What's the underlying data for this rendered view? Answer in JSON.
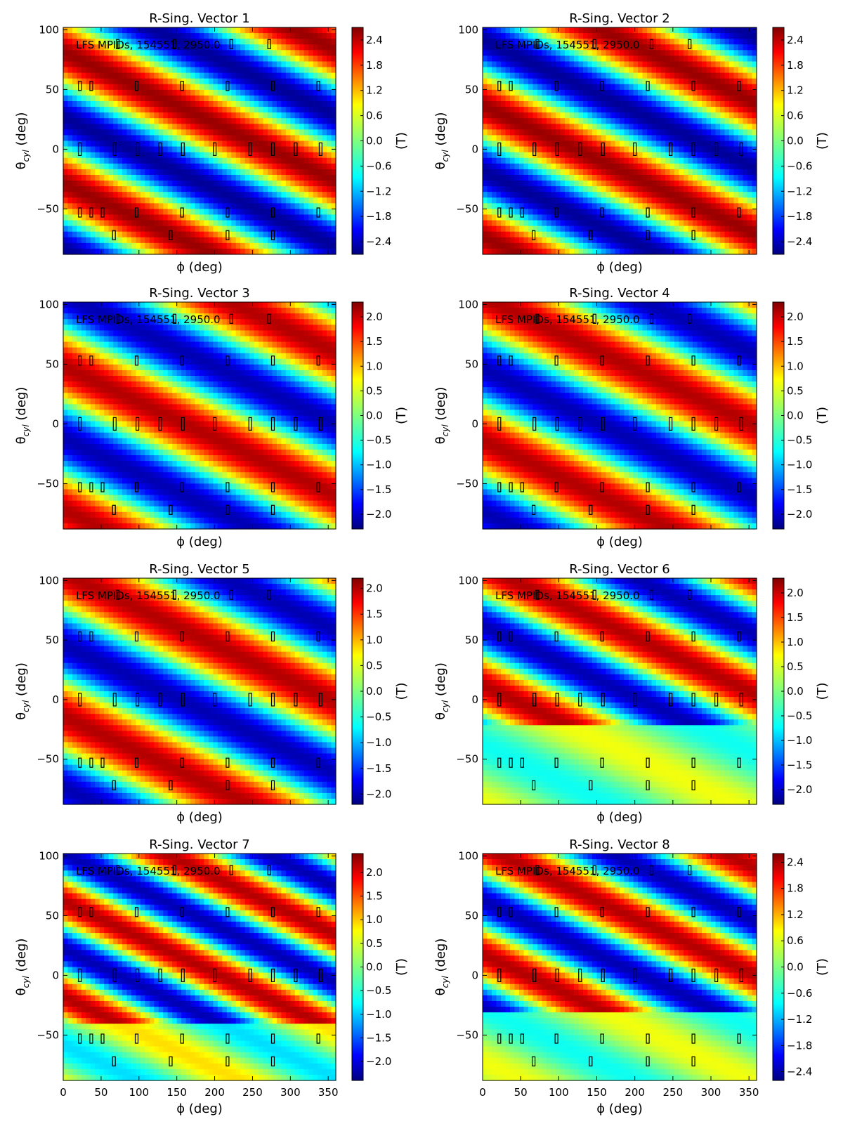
{
  "figure": {
    "annotation": "LFS MPIDs, 154551, 2950.0",
    "xlabel": "ϕ (deg)",
    "ylabel_main": "θ",
    "ylabel_sub": "cyl",
    "ylabel_tail": " (deg)",
    "colorbar_label": "(T)"
  },
  "chart_data": [
    {
      "type": "heatmap",
      "title": "R-Sing. Vector 1",
      "xlim": [
        0,
        360
      ],
      "ylim": [
        -88,
        102
      ],
      "xticks": [
        0,
        50,
        100,
        150,
        200,
        250,
        300,
        350
      ],
      "yticks": [
        -50,
        0,
        50,
        100
      ],
      "xticklabels_visible": false,
      "cbar_ticks": [
        -2.4,
        -1.8,
        -1.2,
        -0.6,
        0.0,
        0.6,
        1.2,
        1.8,
        2.4
      ],
      "cbar_range": [
        -2.7,
        2.7
      ],
      "pattern": {
        "rows": [
          [
            0,
            1.0,
            0.7
          ]
        ],
        "tilt": -0.3
      }
    },
    {
      "type": "heatmap",
      "title": "R-Sing. Vector 2",
      "xlim": [
        0,
        360
      ],
      "ylim": [
        -88,
        102
      ],
      "xticks": [
        0,
        50,
        100,
        150,
        200,
        250,
        300,
        350
      ],
      "yticks": [
        -50,
        0,
        50,
        100
      ],
      "xticklabels_visible": false,
      "cbar_ticks": [
        -2.4,
        -1.8,
        -1.2,
        -0.6,
        0.0,
        0.6,
        1.2,
        1.8,
        2.4
      ],
      "cbar_range": [
        -2.7,
        2.7
      ],
      "pattern": {
        "rows": [
          [
            -50,
            1.0,
            0.7
          ]
        ],
        "tilt": -0.3
      }
    },
    {
      "type": "heatmap",
      "title": "R-Sing. Vector 3",
      "xlim": [
        0,
        360
      ],
      "ylim": [
        -88,
        102
      ],
      "xticks": [
        0,
        50,
        100,
        150,
        200,
        250,
        300,
        350
      ],
      "yticks": [
        -50,
        0,
        50,
        100
      ],
      "xticklabels_visible": false,
      "cbar_ticks": [
        -2.0,
        -1.5,
        -1.0,
        -0.5,
        0.0,
        0.5,
        1.0,
        1.5,
        2.0
      ],
      "cbar_range": [
        -2.3,
        2.3
      ],
      "pattern": {
        "rows": [
          [
            60,
            1.0,
            0.9
          ]
        ],
        "tilt": -0.3
      }
    },
    {
      "type": "heatmap",
      "title": "R-Sing. Vector 4",
      "xlim": [
        0,
        360
      ],
      "ylim": [
        -88,
        102
      ],
      "xticks": [
        0,
        50,
        100,
        150,
        200,
        250,
        300,
        350
      ],
      "yticks": [
        -50,
        0,
        50,
        100
      ],
      "xticklabels_visible": false,
      "cbar_ticks": [
        -2.0,
        -1.5,
        -1.0,
        -0.5,
        0.0,
        0.5,
        1.0,
        1.5,
        2.0
      ],
      "cbar_range": [
        -2.3,
        2.3
      ],
      "pattern": {
        "rows": [
          [
            -55,
            1.0,
            0.9
          ]
        ],
        "tilt": -0.3
      }
    },
    {
      "type": "heatmap",
      "title": "R-Sing. Vector 5",
      "xlim": [
        0,
        360
      ],
      "ylim": [
        -88,
        102
      ],
      "xticks": [
        0,
        50,
        100,
        150,
        200,
        250,
        300,
        350
      ],
      "yticks": [
        -50,
        0,
        50,
        100
      ],
      "xticklabels_visible": false,
      "cbar_ticks": [
        -2.0,
        -1.5,
        -1.0,
        -0.5,
        0.0,
        0.5,
        1.0,
        1.5,
        2.0
      ],
      "cbar_range": [
        -2.2,
        2.2
      ],
      "pattern": {
        "rows": [
          [
            0,
            1.0,
            0.6
          ]
        ],
        "tilt": -0.3
      }
    },
    {
      "type": "heatmap",
      "title": "R-Sing. Vector 6",
      "xlim": [
        0,
        360
      ],
      "ylim": [
        -88,
        102
      ],
      "xticks": [
        0,
        50,
        100,
        150,
        200,
        250,
        300,
        350
      ],
      "yticks": [
        -50,
        0,
        50,
        100
      ],
      "xticklabels_visible": false,
      "cbar_ticks": [
        -2.0,
        -1.5,
        -1.0,
        -0.5,
        0.0,
        0.5,
        1.0,
        1.5,
        2.0
      ],
      "cbar_range": [
        -2.3,
        2.3
      ],
      "pattern": {
        "rows": [
          [
            60,
            1.0,
            0.6
          ]
        ],
        "tilt": -0.3
      }
    },
    {
      "type": "heatmap",
      "title": "R-Sing. Vector 7",
      "xlim": [
        0,
        360
      ],
      "ylim": [
        -88,
        102
      ],
      "xticks": [
        0,
        50,
        100,
        150,
        200,
        250,
        300,
        350
      ],
      "yticks": [
        -50,
        0,
        50,
        100
      ],
      "xticklabels_visible": true,
      "cbar_ticks": [
        -2.0,
        -1.5,
        -1.0,
        -0.5,
        0.0,
        0.5,
        1.0,
        1.5,
        2.0
      ],
      "cbar_range": [
        -2.4,
        2.4
      ],
      "pattern": {
        "rows": [
          [
            90,
            1.0,
            0.9
          ]
        ],
        "tilt": -0.3
      }
    },
    {
      "type": "heatmap",
      "title": "R-Sing. Vector 8",
      "xlim": [
        0,
        360
      ],
      "ylim": [
        -88,
        102
      ],
      "xticks": [
        0,
        50,
        100,
        150,
        200,
        250,
        300,
        350
      ],
      "yticks": [
        -50,
        0,
        50,
        100
      ],
      "xticklabels_visible": true,
      "cbar_ticks": [
        -2.4,
        -1.8,
        -1.2,
        -0.6,
        0.0,
        0.6,
        1.2,
        1.8,
        2.4
      ],
      "cbar_range": [
        -2.6,
        2.6
      ],
      "pattern": {
        "rows": [
          [
            90,
            1.0,
            0.8
          ]
        ],
        "tilt": -0.3
      }
    }
  ],
  "sensors": [
    [
      22,
      0
    ],
    [
      68,
      0
    ],
    [
      98,
      0
    ],
    [
      128,
      0
    ],
    [
      158,
      0
    ],
    [
      200,
      0
    ],
    [
      247,
      0
    ],
    [
      277,
      0
    ],
    [
      307,
      0
    ],
    [
      340,
      0
    ],
    [
      22,
      53
    ],
    [
      37,
      53
    ],
    [
      97,
      53
    ],
    [
      157,
      53
    ],
    [
      217,
      53
    ],
    [
      277,
      53
    ],
    [
      337,
      53
    ],
    [
      22,
      -53
    ],
    [
      37,
      -53
    ],
    [
      52,
      -53
    ],
    [
      97,
      -53
    ],
    [
      157,
      -53
    ],
    [
      217,
      -53
    ],
    [
      277,
      -53
    ],
    [
      337,
      -53
    ],
    [
      67,
      -72
    ],
    [
      142,
      -72
    ],
    [
      217,
      -72
    ],
    [
      277,
      -72
    ],
    [
      72,
      88
    ],
    [
      147,
      88
    ],
    [
      222,
      88
    ],
    [
      272,
      88
    ]
  ]
}
